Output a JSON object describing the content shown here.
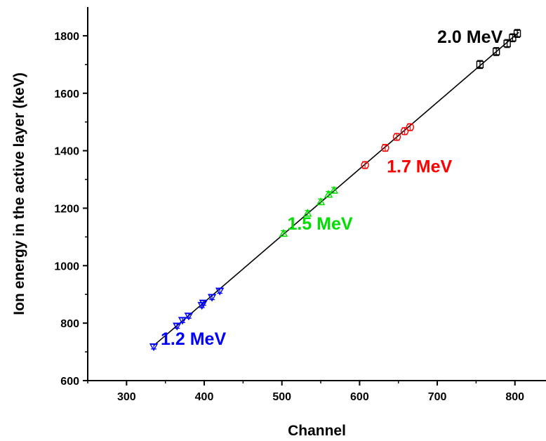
{
  "chart_data": {
    "type": "scatter",
    "xlabel": "Channel",
    "ylabel": "Ion energy in the active layer (keV)",
    "xlim": [
      250,
      840
    ],
    "ylim": [
      600,
      1900
    ],
    "xticks": [
      300,
      400,
      500,
      600,
      700,
      800
    ],
    "yticks": [
      600,
      800,
      1000,
      1200,
      1400,
      1600,
      1800
    ],
    "grid": false,
    "fit_line": {
      "x": [
        335,
        805
      ],
      "y": [
        722,
        1812
      ],
      "color": "#000000"
    },
    "series": [
      {
        "name": "1.2 MeV",
        "color": "#0000ff",
        "marker": "triangle-down",
        "x": [
          335,
          365,
          372,
          380,
          397,
          399,
          410,
          420
        ],
        "y": [
          718,
          790,
          810,
          825,
          862,
          870,
          890,
          912
        ],
        "yerr": 8
      },
      {
        "name": "1.5 MeV",
        "color": "#00dd00",
        "marker": "triangle-up",
        "x": [
          502,
          533,
          550,
          560,
          567
        ],
        "y": [
          1112,
          1182,
          1222,
          1248,
          1262
        ],
        "yerr": 10
      },
      {
        "name": "1.7 MeV",
        "color": "#ff0000",
        "marker": "circle",
        "x": [
          607,
          633,
          648,
          658,
          665
        ],
        "y": [
          1350,
          1410,
          1448,
          1468,
          1482
        ],
        "yerr": 12
      },
      {
        "name": "2.0 MeV",
        "color": "#000000",
        "marker": "square",
        "x": [
          755,
          776,
          790,
          797,
          803
        ],
        "y": [
          1700,
          1745,
          1773,
          1793,
          1808
        ],
        "yerr": 14
      }
    ],
    "annotations": [
      {
        "text": "2.0 MeV",
        "x": 700,
        "y": 1775,
        "color": "#000000"
      },
      {
        "text": "1.7 MeV",
        "x": 635,
        "y": 1325,
        "color": "#ff0000"
      },
      {
        "text": "1.5 MeV",
        "x": 507,
        "y": 1125,
        "color": "#00dd00"
      },
      {
        "text": "1.2 MeV",
        "x": 344,
        "y": 725,
        "color": "#0000ff"
      }
    ]
  }
}
